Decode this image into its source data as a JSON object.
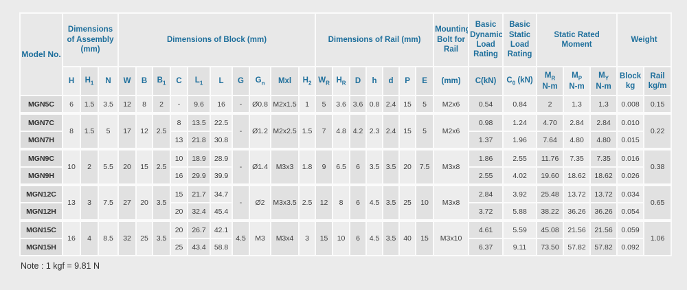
{
  "page": {
    "note": "Note : 1 kgf = 9.81 N"
  },
  "colors": {
    "header_text": "#1e6f9c",
    "body_text": "#3e3e3e",
    "light_column": "#ededed",
    "dark_column": "#e1e1e1",
    "model_column": "#dbdbdb",
    "page_background": "#ebebeb"
  },
  "table": {
    "groups": [
      {
        "label": "Model No.",
        "cols": 1,
        "full_height": true
      },
      {
        "label": "Dimensions of Assembly (mm)",
        "cols": 3
      },
      {
        "label": "Dimensions of Block (mm)",
        "cols": 10
      },
      {
        "label": "Dimensions of Rail (mm)",
        "cols": 7
      },
      {
        "label": "Mounting Bolt for Rail",
        "cols": 1
      },
      {
        "label": "Basic Dynamic Load Rating",
        "cols": 1
      },
      {
        "label": "Basic Static Load Rating",
        "cols": 1
      },
      {
        "label": "Static Rated Moment",
        "cols": 3
      },
      {
        "label": "Weight",
        "cols": 2
      }
    ],
    "sub_headers": [
      "H",
      "H_{1}",
      "N",
      "W",
      "B",
      "B_{1}",
      "C",
      "L_{1}",
      "L",
      "G",
      "G_{n}",
      "Mxl",
      "H_{2}",
      "W_{R}",
      "H_{R}",
      "D",
      "h",
      "d",
      "P",
      "E",
      "(mm)",
      "C(kN)",
      "C_{0} (kN)",
      "M_{R}\nN-m",
      "M_{P}\nN-m",
      "M_{Y}\nN-m",
      "Block\nkg",
      "Rail\nkg/m"
    ],
    "rows": [
      {
        "model": "MGN5C",
        "group_start": false,
        "cells": [
          "6",
          "1.5",
          "3.5",
          "12",
          "8",
          "2",
          "-",
          "9.6",
          "16",
          "-",
          "Ø0.8",
          "M2x1.5",
          "1",
          "5",
          "3.6",
          "3.6",
          "0.8",
          "2.4",
          "15",
          "5",
          "M2x6",
          "0.54",
          "0.84",
          "2",
          "1.3",
          "1.3",
          "0.008",
          "0.15"
        ]
      },
      {
        "model": "MGN7C",
        "group_start": true,
        "cells": [
          {
            "v": "8",
            "rs": 2
          },
          {
            "v": "1.5",
            "rs": 2
          },
          {
            "v": "5",
            "rs": 2
          },
          {
            "v": "17",
            "rs": 2
          },
          {
            "v": "12",
            "rs": 2
          },
          {
            "v": "2.5",
            "rs": 2
          },
          "8",
          "13.5",
          "22.5",
          {
            "v": "-",
            "rs": 2
          },
          {
            "v": "Ø1.2",
            "rs": 2
          },
          {
            "v": "M2x2.5",
            "rs": 2
          },
          {
            "v": "1.5",
            "rs": 2
          },
          {
            "v": "7",
            "rs": 2
          },
          {
            "v": "4.8",
            "rs": 2
          },
          {
            "v": "4.2",
            "rs": 2
          },
          {
            "v": "2.3",
            "rs": 2
          },
          {
            "v": "2.4",
            "rs": 2
          },
          {
            "v": "15",
            "rs": 2
          },
          {
            "v": "5",
            "rs": 2
          },
          {
            "v": "M2x6",
            "rs": 2
          },
          "0.98",
          "1.24",
          "4.70",
          "2.84",
          "2.84",
          "0.010",
          {
            "v": "0.22",
            "rs": 2
          }
        ]
      },
      {
        "model": "MGN7H",
        "group_start": false,
        "cells": [
          "13",
          "21.8",
          "30.8",
          "1.37",
          "1.96",
          "7.64",
          "4.80",
          "4.80",
          "0.015"
        ]
      },
      {
        "model": "MGN9C",
        "group_start": true,
        "cells": [
          {
            "v": "10",
            "rs": 2
          },
          {
            "v": "2",
            "rs": 2
          },
          {
            "v": "5.5",
            "rs": 2
          },
          {
            "v": "20",
            "rs": 2
          },
          {
            "v": "15",
            "rs": 2
          },
          {
            "v": "2.5",
            "rs": 2
          },
          "10",
          "18.9",
          "28.9",
          {
            "v": "-",
            "rs": 2
          },
          {
            "v": "Ø1.4",
            "rs": 2
          },
          {
            "v": "M3x3",
            "rs": 2
          },
          {
            "v": "1.8",
            "rs": 2
          },
          {
            "v": "9",
            "rs": 2
          },
          {
            "v": "6.5",
            "rs": 2
          },
          {
            "v": "6",
            "rs": 2
          },
          {
            "v": "3.5",
            "rs": 2
          },
          {
            "v": "3.5",
            "rs": 2
          },
          {
            "v": "20",
            "rs": 2
          },
          {
            "v": "7.5",
            "rs": 2
          },
          {
            "v": "M3x8",
            "rs": 2
          },
          "1.86",
          "2.55",
          "11.76",
          "7.35",
          "7.35",
          "0.016",
          {
            "v": "0.38",
            "rs": 2
          }
        ]
      },
      {
        "model": "MGN9H",
        "group_start": false,
        "cells": [
          "16",
          "29.9",
          "39.9",
          "2.55",
          "4.02",
          "19.60",
          "18.62",
          "18.62",
          "0.026"
        ]
      },
      {
        "model": "MGN12C",
        "group_start": true,
        "cells": [
          {
            "v": "13",
            "rs": 2
          },
          {
            "v": "3",
            "rs": 2
          },
          {
            "v": "7.5",
            "rs": 2
          },
          {
            "v": "27",
            "rs": 2
          },
          {
            "v": "20",
            "rs": 2
          },
          {
            "v": "3.5",
            "rs": 2
          },
          "15",
          "21.7",
          "34.7",
          {
            "v": "-",
            "rs": 2
          },
          {
            "v": "Ø2",
            "rs": 2
          },
          {
            "v": "M3x3.5",
            "rs": 2
          },
          {
            "v": "2.5",
            "rs": 2
          },
          {
            "v": "12",
            "rs": 2
          },
          {
            "v": "8",
            "rs": 2
          },
          {
            "v": "6",
            "rs": 2
          },
          {
            "v": "4.5",
            "rs": 2
          },
          {
            "v": "3.5",
            "rs": 2
          },
          {
            "v": "25",
            "rs": 2
          },
          {
            "v": "10",
            "rs": 2
          },
          {
            "v": "M3x8",
            "rs": 2
          },
          "2.84",
          "3.92",
          "25.48",
          "13.72",
          "13.72",
          "0.034",
          {
            "v": "0.65",
            "rs": 2
          }
        ]
      },
      {
        "model": "MGN12H",
        "group_start": false,
        "cells": [
          "20",
          "32.4",
          "45.4",
          "3.72",
          "5.88",
          "38.22",
          "36.26",
          "36.26",
          "0.054"
        ]
      },
      {
        "model": "MGN15C",
        "group_start": true,
        "cells": [
          {
            "v": "16",
            "rs": 2
          },
          {
            "v": "4",
            "rs": 2
          },
          {
            "v": "8.5",
            "rs": 2
          },
          {
            "v": "32",
            "rs": 2
          },
          {
            "v": "25",
            "rs": 2
          },
          {
            "v": "3.5",
            "rs": 2
          },
          "20",
          "26.7",
          "42.1",
          {
            "v": "4.5",
            "rs": 2
          },
          {
            "v": "M3",
            "rs": 2
          },
          {
            "v": "M3x4",
            "rs": 2
          },
          {
            "v": "3",
            "rs": 2
          },
          {
            "v": "15",
            "rs": 2
          },
          {
            "v": "10",
            "rs": 2
          },
          {
            "v": "6",
            "rs": 2
          },
          {
            "v": "4.5",
            "rs": 2
          },
          {
            "v": "3.5",
            "rs": 2
          },
          {
            "v": "40",
            "rs": 2
          },
          {
            "v": "15",
            "rs": 2
          },
          {
            "v": "M3x10",
            "rs": 2
          },
          "4.61",
          "5.59",
          "45.08",
          "21.56",
          "21.56",
          "0.059",
          {
            "v": "1.06",
            "rs": 2
          }
        ]
      },
      {
        "model": "MGN15H",
        "group_start": false,
        "cells": [
          "25",
          "43.4",
          "58.8",
          "6.37",
          "9.11",
          "73.50",
          "57.82",
          "57.82",
          "0.092"
        ]
      }
    ]
  }
}
